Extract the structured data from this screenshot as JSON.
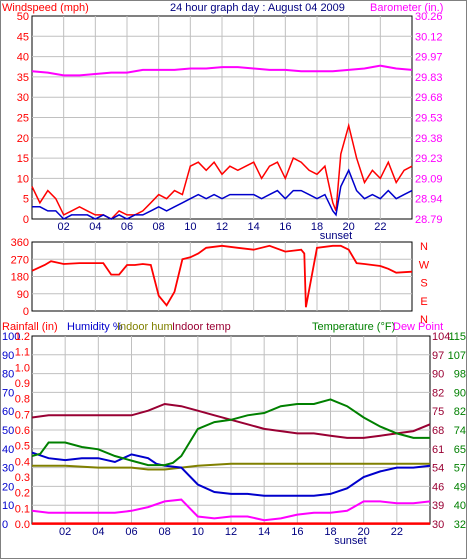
{
  "colors": {
    "windspeed": "#ff0000",
    "windspeed_avg": "#0000cc",
    "barometer": "#ff00ff",
    "winddir": "#ff0000",
    "rainfall": "#ff0000",
    "humidity": "#0000cc",
    "indoor_hum": "#808000",
    "indoor_temp": "#990033",
    "temperature": "#008000",
    "dew_point": "#ff00ff",
    "title": "#000080",
    "grid": "#c0c0c0",
    "frame": "#000000",
    "tick_text": "#000080"
  },
  "chart_data": [
    {
      "type": "line",
      "title": "24 hour graph day : August 04 2009",
      "left_label": "Windspeed (mph)",
      "right_label": "Barometer (in.)",
      "xlabel": "sunset",
      "x_range": [
        0,
        24
      ],
      "x_ticks": [
        "02",
        "04",
        "06",
        "08",
        "10",
        "12",
        "14",
        "16",
        "18",
        "20",
        "22"
      ],
      "y_left_range": [
        0,
        50
      ],
      "y_left_ticks": [
        "0",
        "5",
        "10",
        "15",
        "20",
        "25",
        "30",
        "35",
        "40",
        "45",
        "50"
      ],
      "y_right_range": [
        28.79,
        30.26
      ],
      "y_right_ticks": [
        "28.79",
        "28.94",
        "29.09",
        "29.23",
        "29.38",
        "29.53",
        "29.68",
        "29.83",
        "29.97",
        "30.12",
        "30.26"
      ],
      "series": [
        {
          "name": "Windspeed",
          "axis": "left",
          "x": [
            0,
            0.5,
            1,
            1.5,
            2,
            2.5,
            3,
            3.5,
            4,
            4.5,
            5,
            5.5,
            6,
            6.5,
            7,
            7.5,
            8,
            8.5,
            9,
            9.5,
            10,
            10.5,
            11,
            11.5,
            12,
            12.5,
            13,
            13.5,
            14,
            14.5,
            15,
            15.5,
            16,
            16.5,
            17,
            17.5,
            18,
            18.5,
            19,
            19.2,
            19.5,
            20,
            20.5,
            21,
            21.5,
            22,
            22.5,
            23,
            23.5,
            24
          ],
          "y": [
            8,
            4,
            7,
            5,
            1,
            2,
            3,
            2,
            1,
            1,
            0,
            2,
            1,
            1,
            2,
            4,
            6,
            5,
            7,
            6,
            13,
            14,
            12,
            14,
            11,
            13,
            12,
            13,
            14,
            10,
            13,
            14,
            10,
            15,
            14,
            12,
            11,
            13,
            4,
            2,
            16,
            23,
            15,
            9,
            12,
            10,
            14,
            9,
            12,
            13
          ]
        },
        {
          "name": "Windspeed avg",
          "axis": "left",
          "x": [
            0,
            0.5,
            1,
            1.5,
            2,
            2.5,
            3,
            3.5,
            4,
            4.5,
            5,
            5.5,
            6,
            6.5,
            7,
            7.5,
            8,
            8.5,
            9,
            9.5,
            10,
            10.5,
            11,
            11.5,
            12,
            12.5,
            13,
            13.5,
            14,
            14.5,
            15,
            15.5,
            16,
            16.5,
            17,
            17.5,
            18,
            18.5,
            19,
            19.2,
            19.5,
            20,
            20.5,
            21,
            21.5,
            22,
            22.5,
            23,
            23.5,
            24
          ],
          "y": [
            3,
            3,
            2,
            2,
            0,
            1,
            1,
            1,
            0,
            1,
            0,
            1,
            0,
            1,
            1,
            2,
            3,
            2,
            3,
            4,
            5,
            6,
            5,
            6,
            5,
            6,
            6,
            6,
            6,
            5,
            6,
            7,
            5,
            7,
            7,
            6,
            5,
            6,
            2,
            1,
            8,
            12,
            7,
            5,
            6,
            5,
            7,
            5,
            6,
            7
          ]
        },
        {
          "name": "Barometer",
          "axis": "right",
          "x": [
            0,
            1,
            2,
            3,
            4,
            5,
            6,
            7,
            8,
            9,
            10,
            11,
            12,
            13,
            14,
            15,
            16,
            17,
            18,
            19,
            20,
            21,
            22,
            23,
            24
          ],
          "y": [
            29.86,
            29.85,
            29.83,
            29.83,
            29.84,
            29.85,
            29.85,
            29.87,
            29.87,
            29.87,
            29.88,
            29.88,
            29.89,
            29.89,
            29.88,
            29.87,
            29.87,
            29.86,
            29.86,
            29.86,
            29.87,
            29.88,
            29.9,
            29.88,
            29.87
          ]
        }
      ]
    },
    {
      "type": "line",
      "title": "",
      "left_label": "",
      "right_label": "",
      "xlabel": "",
      "x_range": [
        0,
        24
      ],
      "y_left_range": [
        0,
        360
      ],
      "y_left_ticks": [
        "0",
        "90",
        "180",
        "270",
        "360"
      ],
      "y_right_ticks": [
        "N",
        "E",
        "S",
        "W",
        "N"
      ],
      "series": [
        {
          "name": "Wind direction",
          "axis": "left",
          "x": [
            0,
            0.8,
            1.2,
            2,
            3,
            3.5,
            4,
            4.5,
            5,
            5.5,
            6,
            6.5,
            7,
            7.5,
            8,
            8.5,
            9,
            9.5,
            10,
            10.5,
            11,
            12,
            13,
            14,
            15,
            16,
            17,
            17.2,
            17.3,
            18,
            19,
            19.5,
            20,
            20.5,
            21,
            22,
            22.5,
            23,
            24
          ],
          "y": [
            210,
            240,
            260,
            245,
            250,
            250,
            250,
            250,
            190,
            190,
            240,
            240,
            245,
            240,
            80,
            30,
            100,
            270,
            280,
            300,
            330,
            340,
            330,
            320,
            340,
            310,
            320,
            300,
            20,
            330,
            340,
            340,
            320,
            250,
            245,
            235,
            220,
            200,
            205
          ]
        }
      ]
    },
    {
      "type": "line",
      "title": "",
      "left_labels": [
        "Rainfall (in)",
        "Humidity %",
        "Indoor hum",
        "Indoor temp"
      ],
      "right_labels": [
        "Temperature (°F)",
        "Dew Point"
      ],
      "xlabel": "sunset",
      "x_range": [
        0,
        24
      ],
      "x_ticks": [
        "02",
        "04",
        "06",
        "08",
        "10",
        "12",
        "14",
        "16",
        "18",
        "20",
        "22"
      ],
      "y_rain_ticks": [
        "0.0",
        "0.1",
        "0.2",
        "0.3",
        "0.4",
        "0.5",
        "0.6",
        "0.7",
        "0.8",
        "0.9",
        "1.0",
        "1.1",
        "1.2"
      ],
      "y_hum_ticks": [
        "0",
        "10",
        "20",
        "30",
        "40",
        "50",
        "60",
        "70",
        "80",
        "90",
        "100"
      ],
      "y_hum_range": [
        0,
        100
      ],
      "y_temp_ticks_a": [
        "32",
        "40",
        "49",
        "57",
        "65",
        "74",
        "82",
        "90",
        "98",
        "107",
        "115"
      ],
      "y_temp_ticks_b": [
        "30",
        "39",
        "46",
        "54",
        "61",
        "68",
        "75",
        "82",
        "90",
        "97",
        "104"
      ],
      "y_temp_range": [
        32,
        115
      ],
      "series": [
        {
          "name": "Rainfall",
          "axis": "hum",
          "x": [
            0,
            24
          ],
          "y": [
            0.2,
            0.2
          ]
        },
        {
          "name": "Humidity",
          "axis": "hum",
          "x": [
            0,
            1,
            2,
            3,
            4,
            5,
            6,
            7,
            7.5,
            8,
            9,
            10,
            11,
            12,
            13,
            14,
            15,
            16,
            17,
            18,
            19,
            20,
            21,
            22,
            23,
            24
          ],
          "y": [
            38,
            35,
            34,
            35,
            35,
            33,
            37,
            35,
            32,
            31,
            30,
            21,
            17,
            16,
            16,
            15,
            15,
            15,
            15,
            16,
            19,
            25,
            28,
            30,
            30,
            31
          ]
        },
        {
          "name": "Indoor hum",
          "axis": "hum",
          "x": [
            0,
            2,
            4,
            6,
            7,
            8,
            9,
            10,
            12,
            14,
            16,
            18,
            20,
            22,
            24
          ],
          "y": [
            31,
            31,
            30,
            30,
            29,
            29,
            30,
            31,
            32,
            32,
            32,
            32,
            32,
            32,
            32
          ]
        },
        {
          "name": "Indoor temp",
          "axis": "temp",
          "x": [
            0,
            1,
            2,
            3,
            4,
            5,
            6,
            7,
            8,
            9,
            10,
            11,
            12,
            13,
            14,
            15,
            16,
            17,
            18,
            19,
            20,
            21,
            22,
            23,
            24
          ],
          "y": [
            79,
            80,
            80,
            80,
            80,
            80,
            80,
            82,
            85,
            84,
            82,
            80,
            78,
            76,
            74,
            73,
            72,
            72,
            71,
            70,
            70,
            71,
            72,
            73,
            76
          ]
        },
        {
          "name": "Temperature",
          "axis": "temp",
          "x": [
            0,
            0.5,
            1,
            2,
            3,
            4,
            5,
            6,
            7,
            8,
            8.5,
            9,
            10,
            11,
            12,
            13,
            14,
            15,
            16,
            17,
            18,
            19,
            20,
            21,
            22,
            23,
            24
          ],
          "y": [
            62,
            63,
            68,
            68,
            66,
            65,
            62,
            60,
            58,
            58,
            59,
            62,
            74,
            77,
            78,
            80,
            81,
            84,
            85,
            85,
            87,
            84,
            79,
            75,
            72,
            70,
            70
          ]
        },
        {
          "name": "Dew Point",
          "axis": "hum",
          "x": [
            0,
            1,
            2,
            3,
            4,
            5,
            6,
            7,
            8,
            9,
            10,
            11,
            12,
            13,
            14,
            15,
            16,
            17,
            18,
            19,
            20,
            21,
            22,
            23,
            24
          ],
          "y": [
            7,
            6,
            6,
            6,
            6,
            6,
            7,
            9,
            12,
            13,
            4,
            3,
            4,
            4,
            2,
            3,
            5,
            6,
            6,
            7,
            12,
            12,
            11,
            11,
            12
          ]
        }
      ]
    }
  ]
}
